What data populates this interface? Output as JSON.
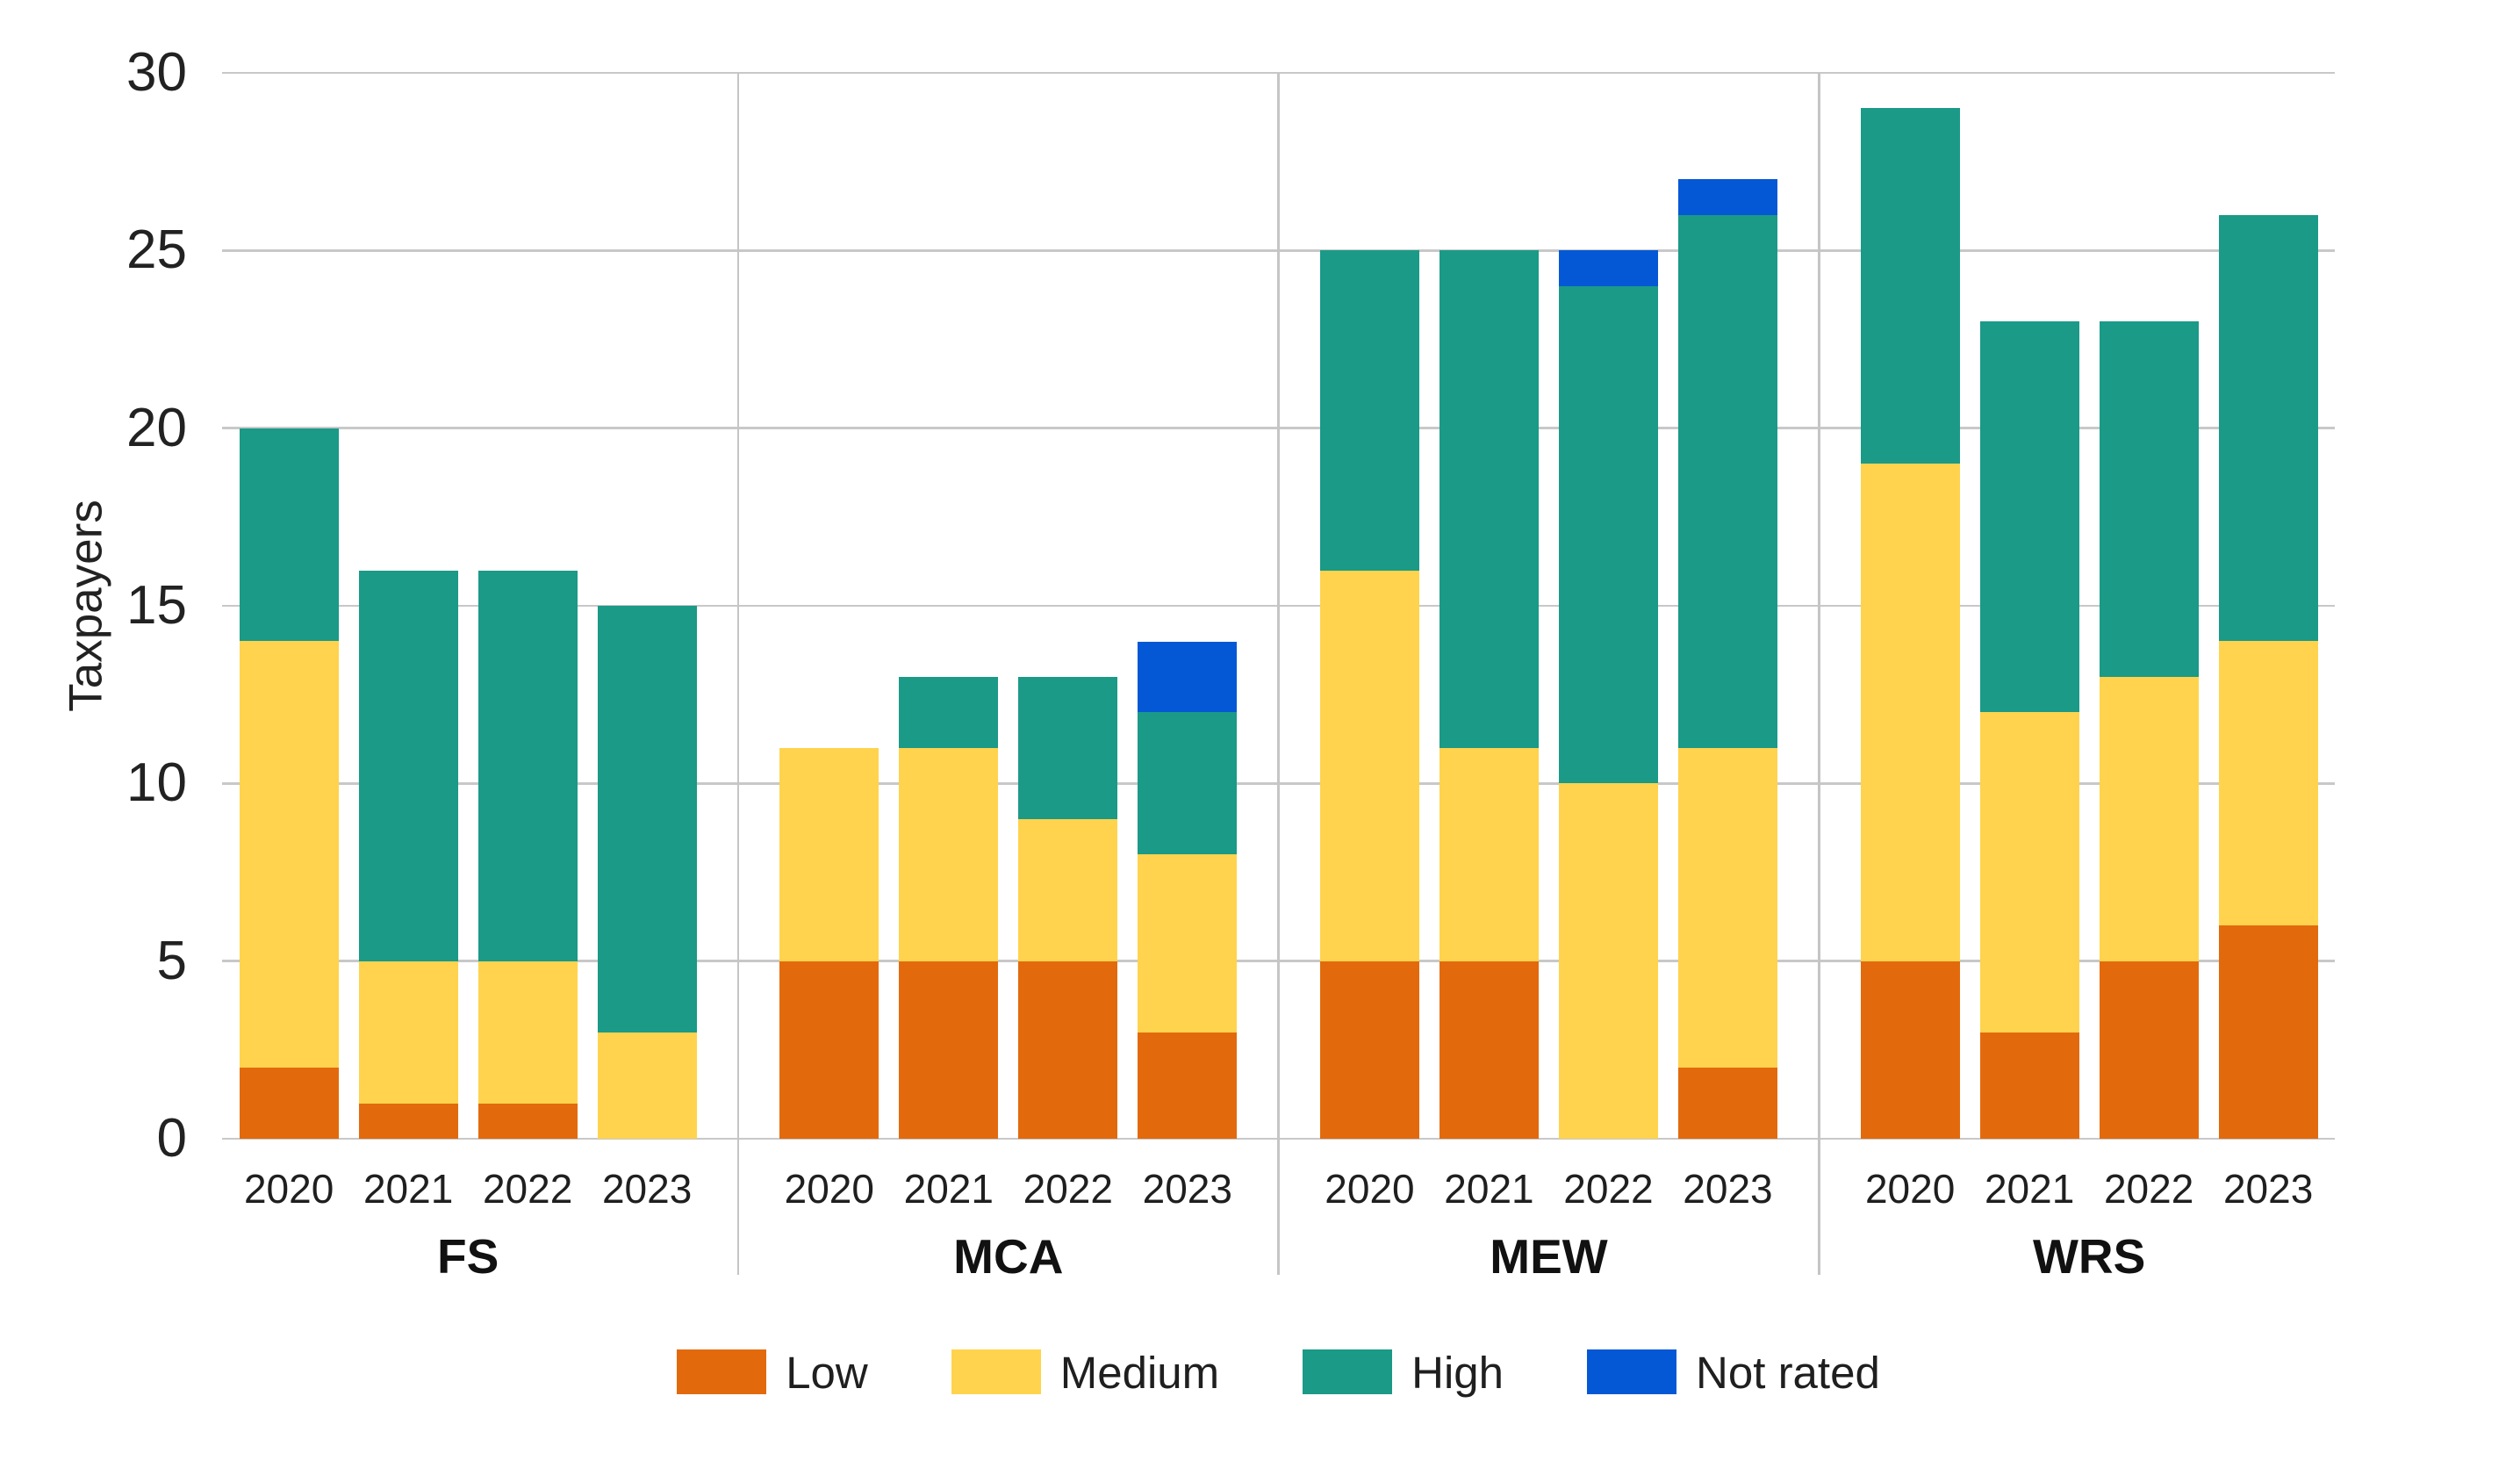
{
  "chart_data": {
    "type": "bar",
    "stacked": true,
    "title": "",
    "ylabel": "Taxpayers",
    "ylim": [
      0,
      30
    ],
    "yticks": [
      0,
      5,
      10,
      15,
      20,
      25,
      30
    ],
    "grid": "horizontal",
    "legend_position": "bottom-center",
    "axis_colors": {
      "gridline": "#C8C8C8",
      "divider": "#C5C5C5",
      "tick_text": "#222222",
      "label_text": "#111111"
    },
    "groups": [
      "FS",
      "MCA",
      "MEW",
      "WRS"
    ],
    "categories": [
      "2020",
      "2021",
      "2022",
      "2023"
    ],
    "series": [
      {
        "name": "Low",
        "color": "#E26A0D",
        "values": [
          [
            2,
            1,
            1,
            0
          ],
          [
            5,
            5,
            5,
            3
          ],
          [
            5,
            5,
            0,
            2
          ],
          [
            5,
            3,
            5,
            6
          ]
        ]
      },
      {
        "name": "Medium",
        "color": "#FFD34D",
        "values": [
          [
            12,
            4,
            4,
            3
          ],
          [
            6,
            6,
            4,
            5
          ],
          [
            11,
            6,
            10,
            9
          ],
          [
            14,
            9,
            8,
            8
          ]
        ]
      },
      {
        "name": "High",
        "color": "#1A9A87",
        "values": [
          [
            6,
            11,
            11,
            12
          ],
          [
            0,
            2,
            4,
            4
          ],
          [
            9,
            14,
            14,
            15
          ],
          [
            10,
            11,
            10,
            12
          ]
        ]
      },
      {
        "name": "Not rated",
        "color": "#0558D5",
        "values": [
          [
            0,
            0,
            0,
            0
          ],
          [
            0,
            0,
            0,
            2
          ],
          [
            0,
            0,
            1,
            1
          ],
          [
            0,
            0,
            0,
            0
          ]
        ]
      }
    ],
    "group_totals": {
      "FS": [
        20,
        16,
        16,
        15
      ],
      "MCA": [
        11,
        13,
        13,
        14
      ],
      "MEW": [
        25,
        25,
        25,
        27
      ],
      "WRS": [
        29,
        23,
        23,
        26
      ]
    }
  }
}
